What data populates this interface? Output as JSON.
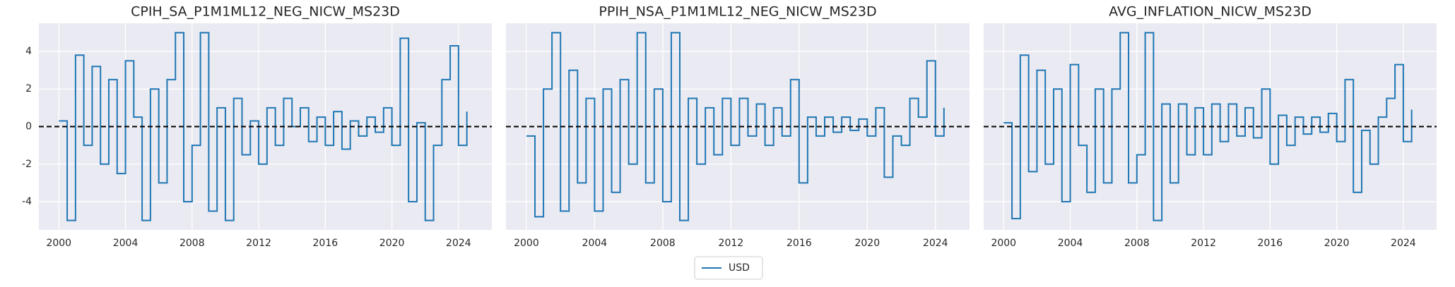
{
  "chart_data": [
    {
      "type": "line",
      "step": true,
      "title": "CPIH_SA_P1M1ML12_NEG_NICW_MS23D",
      "color": "#1f77b4",
      "x": [
        2000,
        2000.5,
        2001,
        2001.5,
        2002,
        2002.5,
        2003,
        2003.5,
        2004,
        2004.5,
        2005,
        2005.5,
        2006,
        2006.5,
        2007,
        2007.5,
        2008,
        2008.5,
        2009,
        2009.5,
        2010,
        2010.5,
        2011,
        2011.5,
        2012,
        2012.5,
        2013,
        2013.5,
        2014,
        2014.5,
        2015,
        2015.5,
        2016,
        2016.5,
        2017,
        2017.5,
        2018,
        2018.5,
        2019,
        2019.5,
        2020,
        2020.5,
        2021,
        2021.5,
        2022,
        2022.5,
        2023,
        2023.5,
        2024,
        2024.5
      ],
      "values": [
        0.3,
        -5,
        3.8,
        -1,
        3.2,
        -2,
        2.5,
        -2.5,
        3.5,
        0.5,
        -5,
        2,
        -3,
        2.5,
        5,
        -4,
        -1,
        5,
        -4.5,
        1,
        -5,
        1.5,
        -1.5,
        0.3,
        -2,
        1,
        -1,
        1.5,
        0,
        1,
        -0.8,
        0.5,
        -1,
        0.8,
        -1.2,
        0.3,
        -0.5,
        0.5,
        -0.3,
        1,
        -1,
        4.7,
        -4,
        0.2,
        -5,
        -1,
        2.5,
        4.3,
        -1,
        0.8
      ],
      "xlim": [
        1998.8,
        2026
      ],
      "ylim": [
        -5.5,
        5.5
      ],
      "xticks": [
        2000,
        2004,
        2008,
        2012,
        2016,
        2020,
        2024
      ],
      "yticks": [
        -4,
        -2,
        0,
        2,
        4
      ],
      "ytick_labels": true,
      "hline": 0,
      "grid": true
    },
    {
      "type": "line",
      "step": true,
      "title": "PPIH_NSA_P1M1ML12_NEG_NICW_MS23D",
      "color": "#1f77b4",
      "x": [
        2000,
        2000.5,
        2001,
        2001.5,
        2002,
        2002.5,
        2003,
        2003.5,
        2004,
        2004.5,
        2005,
        2005.5,
        2006,
        2006.5,
        2007,
        2007.5,
        2008,
        2008.5,
        2009,
        2009.5,
        2010,
        2010.5,
        2011,
        2011.5,
        2012,
        2012.5,
        2013,
        2013.5,
        2014,
        2014.5,
        2015,
        2015.5,
        2016,
        2016.5,
        2017,
        2017.5,
        2018,
        2018.5,
        2019,
        2019.5,
        2020,
        2020.5,
        2021,
        2021.5,
        2022,
        2022.5,
        2023,
        2023.5,
        2024,
        2024.5
      ],
      "values": [
        -0.5,
        -4.8,
        2,
        5,
        -4.5,
        3,
        -3,
        1.5,
        -4.5,
        2,
        -3.5,
        2.5,
        -2,
        5,
        -3,
        2,
        -4,
        5,
        -5,
        1.5,
        -2,
        1,
        -1.5,
        1.5,
        -1,
        1.5,
        -0.5,
        1.2,
        -1,
        1,
        -0.5,
        2.5,
        -3,
        0.5,
        -0.5,
        0.5,
        -0.3,
        0.5,
        -0.2,
        0.4,
        -0.5,
        1,
        -2.7,
        -0.5,
        -1,
        1.5,
        0.5,
        3.5,
        -0.5,
        1
      ],
      "xlim": [
        1998.8,
        2026
      ],
      "ylim": [
        -5.5,
        5.5
      ],
      "xticks": [
        2000,
        2004,
        2008,
        2012,
        2016,
        2020,
        2024
      ],
      "yticks": [
        -4,
        -2,
        0,
        2,
        4
      ],
      "ytick_labels": false,
      "hline": 0,
      "grid": true
    },
    {
      "type": "line",
      "step": true,
      "title": "AVG_INFLATION_NICW_MS23D",
      "color": "#1f77b4",
      "x": [
        2000,
        2000.5,
        2001,
        2001.5,
        2002,
        2002.5,
        2003,
        2003.5,
        2004,
        2004.5,
        2005,
        2005.5,
        2006,
        2006.5,
        2007,
        2007.5,
        2008,
        2008.5,
        2009,
        2009.5,
        2010,
        2010.5,
        2011,
        2011.5,
        2012,
        2012.5,
        2013,
        2013.5,
        2014,
        2014.5,
        2015,
        2015.5,
        2016,
        2016.5,
        2017,
        2017.5,
        2018,
        2018.5,
        2019,
        2019.5,
        2020,
        2020.5,
        2021,
        2021.5,
        2022,
        2022.5,
        2023,
        2023.5,
        2024,
        2024.5
      ],
      "values": [
        0.2,
        -4.9,
        3.8,
        -2.4,
        3,
        -2,
        2,
        -4,
        3.3,
        -1,
        -3.5,
        2,
        -3,
        2,
        5,
        -3,
        -1.5,
        5,
        -5,
        1.2,
        -3,
        1.2,
        -1.5,
        1,
        -1.5,
        1.2,
        -0.8,
        1.2,
        -0.5,
        1,
        -0.6,
        2,
        -2,
        0.6,
        -1,
        0.5,
        -0.4,
        0.5,
        -0.3,
        0.7,
        -0.8,
        2.5,
        -3.5,
        -0.2,
        -2,
        0.5,
        1.5,
        3.3,
        -0.8,
        0.9
      ],
      "xlim": [
        1998.8,
        2026
      ],
      "ylim": [
        -5.5,
        5.5
      ],
      "xticks": [
        2000,
        2004,
        2008,
        2012,
        2016,
        2020,
        2024
      ],
      "yticks": [
        -4,
        -2,
        0,
        2,
        4
      ],
      "ytick_labels": false,
      "hline": 0,
      "grid": true
    }
  ],
  "legend": {
    "loc": "lower center",
    "entries": [
      {
        "name": "USD",
        "color": "#1f77b4"
      }
    ]
  }
}
